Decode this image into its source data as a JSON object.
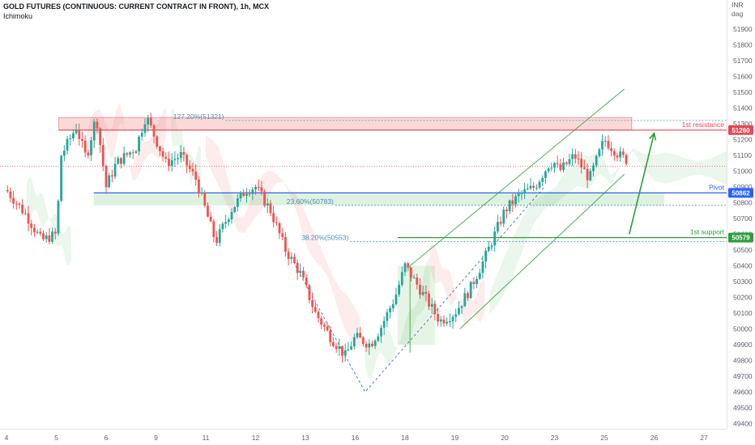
{
  "header": {
    "title": "GOLD FUTURES (CONTINUOUS: CURRENT CONTRACT IN FRONT), 1h, MCX",
    "indicator": "Ichimoku"
  },
  "colors": {
    "bull": "#26a69a",
    "bear": "#ef5350",
    "resistance": "#e04b55",
    "pivot": "#2962ff",
    "support": "#2e9d3c",
    "fib": "#4a8ec4",
    "channel": "#4caf50"
  },
  "chart_data": {
    "type": "candlestick",
    "currency": "INR",
    "unit": "dag",
    "ylim": [
      49400,
      52000
    ],
    "y_ticks": [
      49400,
      49500,
      49600,
      49700,
      49800,
      49900,
      50000,
      50100,
      50200,
      50300,
      50400,
      50500,
      50600,
      50700,
      50800,
      50900,
      51000,
      51100,
      51200,
      51300,
      51400,
      51500,
      51600,
      51700,
      51800,
      51900
    ],
    "x_ticks": [
      {
        "label": "4",
        "pos": 0
      },
      {
        "label": "5",
        "pos": 1
      },
      {
        "label": "6",
        "pos": 2
      },
      {
        "label": "9",
        "pos": 3
      },
      {
        "label": "11",
        "pos": 4
      },
      {
        "label": "12",
        "pos": 5
      },
      {
        "label": "13",
        "pos": 6
      },
      {
        "label": "16",
        "pos": 7
      },
      {
        "label": "18",
        "pos": 8
      },
      {
        "label": "19",
        "pos": 9
      },
      {
        "label": "20",
        "pos": 10
      },
      {
        "label": "23",
        "pos": 11
      },
      {
        "label": "25",
        "pos": 12
      },
      {
        "label": "26",
        "pos": 13
      },
      {
        "label": "27",
        "pos": 14
      }
    ],
    "path": [
      [
        0,
        50880
      ],
      [
        0.4,
        50720
      ],
      [
        0.7,
        50560
      ],
      [
        1,
        50600
      ],
      [
        1.1,
        51100
      ],
      [
        1.4,
        51280
      ],
      [
        1.6,
        51080
      ],
      [
        1.8,
        51350
      ],
      [
        2,
        50900
      ],
      [
        2.2,
        51050
      ],
      [
        2.6,
        51150
      ],
      [
        2.8,
        51350
      ],
      [
        3,
        51200
      ],
      [
        3.2,
        51050
      ],
      [
        3.5,
        51100
      ],
      [
        3.8,
        50950
      ],
      [
        4,
        50750
      ],
      [
        4.2,
        50550
      ],
      [
        4.5,
        50750
      ],
      [
        4.8,
        50880
      ],
      [
        5,
        50900
      ],
      [
        5.3,
        50750
      ],
      [
        5.6,
        50500
      ],
      [
        5.9,
        50350
      ],
      [
        6.2,
        50100
      ],
      [
        6.5,
        49950
      ],
      [
        6.8,
        49830
      ],
      [
        7,
        49950
      ],
      [
        7.3,
        49900
      ],
      [
        7.5,
        50000
      ],
      [
        7.8,
        50200
      ],
      [
        8,
        50400
      ],
      [
        8.1,
        50350
      ],
      [
        8.2,
        50300
      ],
      [
        8.5,
        50150
      ],
      [
        8.7,
        50050
      ],
      [
        9,
        50100
      ],
      [
        9.3,
        50250
      ],
      [
        9.6,
        50450
      ],
      [
        9.8,
        50600
      ],
      [
        10,
        50750
      ],
      [
        10.3,
        50850
      ],
      [
        10.6,
        50900
      ],
      [
        10.9,
        51050
      ],
      [
        11,
        51050
      ],
      [
        11.1,
        51000
      ],
      [
        11.4,
        51100
      ],
      [
        11.7,
        50950
      ],
      [
        12,
        51200
      ],
      [
        12.3,
        51100
      ],
      [
        12.5,
        51060
      ]
    ],
    "ichimoku_cloud": {
      "bullish_spans": [
        [
          0.4,
          1.3
        ],
        [
          3.3,
          3.9
        ],
        [
          7.2,
          8.5
        ],
        [
          9.7,
          15
        ]
      ],
      "bearish_spans": [
        [
          1.6,
          3.2
        ],
        [
          4.0,
          7.1
        ],
        [
          8.5,
          9.6
        ]
      ]
    },
    "levels": [
      {
        "name": "1st resistance",
        "price": 51260,
        "color_key": "resistance",
        "tag": "51260"
      },
      {
        "name": "Pivot",
        "price": 50862,
        "color_key": "pivot",
        "tag": "50862"
      },
      {
        "name": "1st support",
        "price": 50579,
        "color_key": "support",
        "tag": "50579"
      }
    ],
    "current_price": 51030,
    "fib_levels": [
      {
        "label": "127.20%(51321)",
        "price": 51321
      },
      {
        "label": "23.60%(50783)",
        "price": 50783
      },
      {
        "label": "38.20%(50553)",
        "price": 50553
      }
    ],
    "resistance_zone": [
      51260,
      51340
    ],
    "pivot_zone": [
      50783,
      50862
    ],
    "channel": {
      "upper": [
        [
          8.1,
          50400
        ],
        [
          12.4,
          51520
        ]
      ],
      "lower": [
        [
          9.1,
          50000
        ],
        [
          12.4,
          50980
        ]
      ],
      "start": [
        [
          8.1,
          49850
        ],
        [
          8.1,
          50400
        ]
      ]
    },
    "swing_dashed": [
      [
        5.8,
        50400
      ],
      [
        7.2,
        49600
      ],
      [
        10.8,
        50900
      ]
    ],
    "projection_arrow": [
      [
        12.5,
        50600
      ],
      [
        13,
        51240
      ]
    ]
  }
}
